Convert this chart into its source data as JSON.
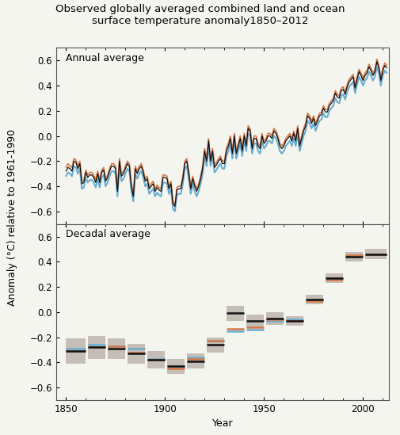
{
  "title": "Observed globally averaged combined land and ocean\nsurface temperature anomaly1850–2012",
  "ylabel": "Anomaly (°C) relative to 1961-1990",
  "xlabel": "Year",
  "annual_label": "Annual average",
  "decadal_label": "Decadal average",
  "ylim": [
    -0.7,
    0.7
  ],
  "yticks": [
    -0.6,
    -0.4,
    -0.2,
    0.0,
    0.2,
    0.4,
    0.6
  ],
  "xlim": [
    1845,
    2013
  ],
  "color_black": "#111111",
  "color_blue": "#6aadce",
  "color_orange": "#d4784a",
  "color_gray_shade": "#c0b8b0",
  "bg_color": "#f5f5f0",
  "title_fontsize": 9.5,
  "label_fontsize": 9,
  "tick_fontsize": 8.5,
  "annual_black": [
    -0.28,
    -0.25,
    -0.26,
    -0.28,
    -0.2,
    -0.21,
    -0.26,
    -0.22,
    -0.38,
    -0.37,
    -0.29,
    -0.33,
    -0.31,
    -0.31,
    -0.33,
    -0.37,
    -0.3,
    -0.37,
    -0.29,
    -0.27,
    -0.36,
    -0.33,
    -0.28,
    -0.24,
    -0.24,
    -0.26,
    -0.44,
    -0.2,
    -0.32,
    -0.3,
    -0.26,
    -0.22,
    -0.24,
    -0.4,
    -0.48,
    -0.26,
    -0.3,
    -0.26,
    -0.24,
    -0.29,
    -0.36,
    -0.34,
    -0.42,
    -0.4,
    -0.38,
    -0.44,
    -0.41,
    -0.43,
    -0.44,
    -0.33,
    -0.33,
    -0.34,
    -0.42,
    -0.38,
    -0.54,
    -0.56,
    -0.43,
    -0.42,
    -0.42,
    -0.34,
    -0.22,
    -0.2,
    -0.3,
    -0.42,
    -0.34,
    -0.4,
    -0.44,
    -0.4,
    -0.34,
    -0.26,
    -0.12,
    -0.2,
    -0.04,
    -0.2,
    -0.12,
    -0.25,
    -0.23,
    -0.2,
    -0.18,
    -0.22,
    -0.22,
    -0.12,
    -0.08,
    -0.02,
    -0.14,
    0.0,
    -0.14,
    -0.08,
    -0.02,
    -0.12,
    0.0,
    -0.08,
    0.06,
    0.04,
    -0.1,
    -0.02,
    -0.02,
    -0.08,
    -0.1,
    0.0,
    -0.06,
    -0.04,
    0.0,
    0.0,
    -0.02,
    0.04,
    0.02,
    -0.02,
    -0.08,
    -0.1,
    -0.08,
    -0.04,
    -0.02,
    0.0,
    -0.04,
    0.02,
    -0.04,
    0.06,
    -0.08,
    -0.02,
    0.04,
    0.08,
    0.16,
    0.14,
    0.1,
    0.14,
    0.08,
    0.12,
    0.16,
    0.17,
    0.22,
    0.19,
    0.19,
    0.24,
    0.26,
    0.28,
    0.34,
    0.31,
    0.3,
    0.36,
    0.37,
    0.33,
    0.39,
    0.43,
    0.45,
    0.47,
    0.38,
    0.45,
    0.51,
    0.48,
    0.44,
    0.48,
    0.5,
    0.55,
    0.52,
    0.48,
    0.51,
    0.59,
    0.54,
    0.44,
    0.52,
    0.56,
    0.54
  ],
  "annual_orange": [
    -0.25,
    -0.22,
    -0.24,
    -0.25,
    -0.18,
    -0.19,
    -0.24,
    -0.2,
    -0.36,
    -0.35,
    -0.27,
    -0.31,
    -0.29,
    -0.29,
    -0.31,
    -0.35,
    -0.28,
    -0.35,
    -0.27,
    -0.25,
    -0.34,
    -0.31,
    -0.26,
    -0.22,
    -0.22,
    -0.24,
    -0.42,
    -0.18,
    -0.3,
    -0.28,
    -0.24,
    -0.2,
    -0.22,
    -0.38,
    -0.46,
    -0.24,
    -0.28,
    -0.24,
    -0.22,
    -0.27,
    -0.34,
    -0.32,
    -0.4,
    -0.38,
    -0.36,
    -0.42,
    -0.39,
    -0.41,
    -0.42,
    -0.31,
    -0.31,
    -0.32,
    -0.4,
    -0.36,
    -0.52,
    -0.55,
    -0.41,
    -0.4,
    -0.4,
    -0.32,
    -0.2,
    -0.18,
    -0.28,
    -0.4,
    -0.32,
    -0.38,
    -0.42,
    -0.38,
    -0.32,
    -0.24,
    -0.1,
    -0.18,
    -0.02,
    -0.18,
    -0.1,
    -0.23,
    -0.21,
    -0.18,
    -0.16,
    -0.2,
    -0.2,
    -0.1,
    -0.06,
    0.0,
    -0.12,
    0.02,
    -0.12,
    -0.06,
    0.0,
    -0.1,
    0.02,
    -0.06,
    0.08,
    0.06,
    -0.08,
    0.0,
    0.0,
    -0.06,
    -0.08,
    0.02,
    -0.04,
    -0.02,
    0.02,
    0.02,
    0.0,
    0.06,
    0.04,
    0.0,
    -0.06,
    -0.08,
    -0.06,
    -0.02,
    0.0,
    0.02,
    -0.02,
    0.04,
    -0.02,
    0.08,
    -0.06,
    0.0,
    0.06,
    0.1,
    0.18,
    0.16,
    0.12,
    0.16,
    0.1,
    0.14,
    0.18,
    0.19,
    0.24,
    0.21,
    0.21,
    0.26,
    0.28,
    0.3,
    0.36,
    0.33,
    0.32,
    0.38,
    0.39,
    0.35,
    0.41,
    0.45,
    0.47,
    0.49,
    0.4,
    0.47,
    0.53,
    0.5,
    0.46,
    0.5,
    0.52,
    0.57,
    0.54,
    0.5,
    0.53,
    0.61,
    0.56,
    0.46,
    0.54,
    0.58,
    0.56
  ],
  "annual_blue": [
    -0.32,
    -0.29,
    -0.3,
    -0.32,
    -0.24,
    -0.25,
    -0.3,
    -0.26,
    -0.42,
    -0.41,
    -0.33,
    -0.37,
    -0.35,
    -0.35,
    -0.37,
    -0.41,
    -0.34,
    -0.41,
    -0.33,
    -0.31,
    -0.4,
    -0.37,
    -0.32,
    -0.28,
    -0.28,
    -0.3,
    -0.48,
    -0.24,
    -0.36,
    -0.34,
    -0.3,
    -0.26,
    -0.28,
    -0.44,
    -0.52,
    -0.3,
    -0.34,
    -0.3,
    -0.28,
    -0.33,
    -0.4,
    -0.38,
    -0.46,
    -0.44,
    -0.42,
    -0.48,
    -0.45,
    -0.47,
    -0.48,
    -0.37,
    -0.37,
    -0.38,
    -0.46,
    -0.42,
    -0.58,
    -0.6,
    -0.47,
    -0.46,
    -0.46,
    -0.38,
    -0.26,
    -0.24,
    -0.34,
    -0.46,
    -0.38,
    -0.44,
    -0.48,
    -0.44,
    -0.38,
    -0.3,
    -0.16,
    -0.24,
    -0.08,
    -0.24,
    -0.16,
    -0.29,
    -0.27,
    -0.24,
    -0.22,
    -0.26,
    -0.26,
    -0.16,
    -0.12,
    -0.06,
    -0.18,
    -0.04,
    -0.18,
    -0.12,
    -0.06,
    -0.16,
    -0.04,
    -0.12,
    0.02,
    0.0,
    -0.14,
    -0.06,
    -0.06,
    -0.12,
    -0.14,
    -0.04,
    -0.1,
    -0.08,
    -0.04,
    -0.04,
    -0.06,
    0.0,
    -0.02,
    -0.06,
    -0.12,
    -0.14,
    -0.12,
    -0.08,
    -0.06,
    -0.04,
    -0.08,
    -0.02,
    -0.08,
    0.02,
    -0.12,
    -0.06,
    0.0,
    0.04,
    0.12,
    0.1,
    0.06,
    0.1,
    0.04,
    0.08,
    0.12,
    0.13,
    0.18,
    0.15,
    0.15,
    0.2,
    0.22,
    0.24,
    0.3,
    0.27,
    0.26,
    0.32,
    0.33,
    0.29,
    0.35,
    0.39,
    0.41,
    0.43,
    0.34,
    0.41,
    0.47,
    0.44,
    0.4,
    0.44,
    0.46,
    0.51,
    0.48,
    0.44,
    0.47,
    0.55,
    0.5,
    0.4,
    0.48,
    0.52,
    0.5
  ],
  "decadal_data": {
    "decade_starts": [
      1850,
      1861,
      1871,
      1881,
      1891,
      1901,
      1911,
      1921,
      1931,
      1941,
      1951,
      1961,
      1971,
      1981,
      1991,
      2001
    ],
    "decade_ends": [
      1860,
      1870,
      1880,
      1890,
      1900,
      1910,
      1920,
      1930,
      1940,
      1950,
      1960,
      1970,
      1980,
      1990,
      2000,
      2012
    ],
    "black_vals": [
      -0.31,
      -0.28,
      -0.29,
      -0.33,
      -0.38,
      -0.43,
      -0.39,
      -0.26,
      -0.01,
      -0.07,
      -0.05,
      -0.07,
      0.1,
      0.27,
      0.44,
      0.46
    ],
    "blue_vals": [
      -0.29,
      -0.26,
      -0.27,
      -0.29,
      -0.37,
      -0.43,
      -0.36,
      -0.23,
      -0.15,
      -0.14,
      -0.07,
      -0.06,
      0.1,
      0.27,
      0.45,
      0.46
    ],
    "orange_vals": [
      -0.31,
      -0.28,
      -0.27,
      -0.32,
      -0.38,
      -0.45,
      -0.37,
      -0.23,
      -0.13,
      -0.12,
      -0.06,
      -0.07,
      0.09,
      0.26,
      0.45,
      0.46
    ],
    "unc_half": [
      0.1,
      0.09,
      0.08,
      0.08,
      0.07,
      0.06,
      0.06,
      0.06,
      0.06,
      0.05,
      0.05,
      0.04,
      0.04,
      0.04,
      0.04,
      0.04
    ]
  }
}
